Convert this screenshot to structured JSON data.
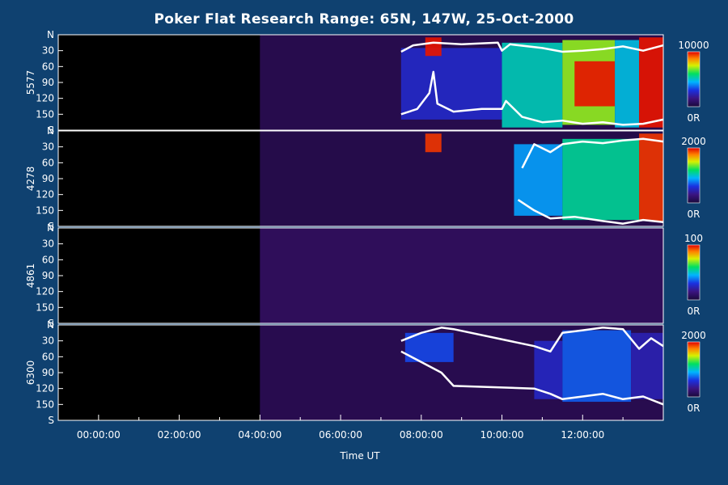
{
  "chart_data": {
    "type": "heatmap",
    "title": "Poker Flat Research Range: 65N, 147W, 25-Oct-2000",
    "xlabel": "Time UT",
    "x_ticks": [
      "00:00:00",
      "02:00:00",
      "04:00:00",
      "06:00:00",
      "08:00:00",
      "10:00:00",
      "12:00:00"
    ],
    "x_range_hours": [
      -1.0,
      14.0
    ],
    "data_start_hour": 4.0,
    "y_ticks": [
      "N",
      "30",
      "60",
      "90",
      "120",
      "150",
      "S"
    ],
    "y_range_deg": [
      0,
      180
    ],
    "panels": [
      {
        "ylabel": "5577",
        "cbar_max": "10000",
        "cbar_min": "0R",
        "zmax": 10000,
        "background": 420,
        "emission": [
          {
            "t0": 7.5,
            "t1": 10.0,
            "a0": 25,
            "a1": 160,
            "v": 2600
          },
          {
            "t0": 8.1,
            "t1": 8.5,
            "a0": 5,
            "a1": 40,
            "v": 9800
          },
          {
            "t0": 10.0,
            "t1": 11.5,
            "a0": 15,
            "a1": 175,
            "v": 5200
          },
          {
            "t0": 11.5,
            "t1": 12.8,
            "a0": 10,
            "a1": 170,
            "v": 7000
          },
          {
            "t0": 11.8,
            "t1": 12.8,
            "a0": 50,
            "a1": 135,
            "v": 9800
          },
          {
            "t0": 12.8,
            "t1": 13.4,
            "a0": 10,
            "a1": 175,
            "v": 4800
          },
          {
            "t0": 13.4,
            "t1": 14.0,
            "a0": 5,
            "a1": 175,
            "v": 9800
          }
        ],
        "contour_upper": [
          [
            7.5,
            32
          ],
          [
            7.8,
            20
          ],
          [
            8.3,
            15
          ],
          [
            9.0,
            18
          ],
          [
            9.9,
            15
          ],
          [
            10.0,
            30
          ],
          [
            10.2,
            18
          ],
          [
            11.0,
            25
          ],
          [
            11.5,
            32
          ],
          [
            12.0,
            30
          ],
          [
            12.5,
            27
          ],
          [
            13.0,
            22
          ],
          [
            13.5,
            30
          ],
          [
            14.0,
            20
          ]
        ],
        "contour_lower": [
          [
            7.5,
            150
          ],
          [
            7.9,
            140
          ],
          [
            8.2,
            110
          ],
          [
            8.3,
            70
          ],
          [
            8.4,
            130
          ],
          [
            8.8,
            145
          ],
          [
            9.5,
            140
          ],
          [
            10.0,
            140
          ],
          [
            10.1,
            125
          ],
          [
            10.5,
            155
          ],
          [
            11.0,
            165
          ],
          [
            11.5,
            162
          ],
          [
            12.0,
            168
          ],
          [
            12.5,
            165
          ],
          [
            13.0,
            170
          ],
          [
            13.5,
            168
          ],
          [
            14.0,
            160
          ]
        ]
      },
      {
        "ylabel": "4278",
        "cbar_max": "2000",
        "cbar_min": "0R",
        "zmax": 2000,
        "background": 70,
        "emission": [
          {
            "t0": 8.1,
            "t1": 8.5,
            "a0": 5,
            "a1": 40,
            "v": 1900
          },
          {
            "t0": 10.3,
            "t1": 11.5,
            "a0": 25,
            "a1": 160,
            "v": 850
          },
          {
            "t0": 11.5,
            "t1": 13.4,
            "a0": 15,
            "a1": 168,
            "v": 1100
          },
          {
            "t0": 13.4,
            "t1": 14.0,
            "a0": 5,
            "a1": 170,
            "v": 1900
          }
        ],
        "contour_upper": [
          [
            10.5,
            70
          ],
          [
            10.8,
            25
          ],
          [
            11.2,
            40
          ],
          [
            11.5,
            25
          ],
          [
            12.0,
            20
          ],
          [
            12.5,
            23
          ],
          [
            13.0,
            18
          ],
          [
            13.5,
            15
          ],
          [
            14.0,
            20
          ]
        ],
        "contour_lower": [
          [
            10.4,
            130
          ],
          [
            10.8,
            150
          ],
          [
            11.2,
            165
          ],
          [
            11.8,
            162
          ],
          [
            12.5,
            170
          ],
          [
            13.0,
            175
          ],
          [
            13.5,
            168
          ],
          [
            14.0,
            172
          ]
        ]
      },
      {
        "ylabel": "4861",
        "cbar_max": "100",
        "cbar_min": "0R",
        "zmax": 100,
        "background": 7,
        "emission": [],
        "contour_upper": [],
        "contour_lower": []
      },
      {
        "ylabel": "6300",
        "cbar_max": "2000",
        "cbar_min": "0R",
        "zmax": 2000,
        "background": 90,
        "emission": [
          {
            "t0": 7.6,
            "t1": 8.8,
            "a0": 15,
            "a1": 70,
            "v": 650
          },
          {
            "t0": 10.8,
            "t1": 11.5,
            "a0": 30,
            "a1": 140,
            "v": 500
          },
          {
            "t0": 11.5,
            "t1": 13.2,
            "a0": 10,
            "a1": 145,
            "v": 700
          },
          {
            "t0": 13.2,
            "t1": 14.0,
            "a0": 15,
            "a1": 140,
            "v": 450
          }
        ],
        "contour_upper": [
          [
            7.5,
            30
          ],
          [
            8.0,
            15
          ],
          [
            8.5,
            5
          ],
          [
            8.8,
            8
          ],
          [
            10.8,
            40
          ],
          [
            11.2,
            50
          ],
          [
            11.5,
            15
          ],
          [
            12.0,
            10
          ],
          [
            12.5,
            5
          ],
          [
            13.0,
            8
          ],
          [
            13.4,
            45
          ],
          [
            13.7,
            25
          ],
          [
            14.0,
            40
          ]
        ],
        "contour_lower": [
          [
            7.5,
            50
          ],
          [
            8.0,
            70
          ],
          [
            8.5,
            90
          ],
          [
            8.8,
            115
          ],
          [
            10.8,
            120
          ],
          [
            11.2,
            130
          ],
          [
            11.5,
            140
          ],
          [
            12.0,
            135
          ],
          [
            12.5,
            130
          ],
          [
            13.0,
            140
          ],
          [
            13.5,
            135
          ],
          [
            14.0,
            150
          ]
        ]
      }
    ],
    "colors": {
      "background": "#0f4170",
      "foreground": "#ffffff",
      "contour": "#ffffff"
    }
  }
}
